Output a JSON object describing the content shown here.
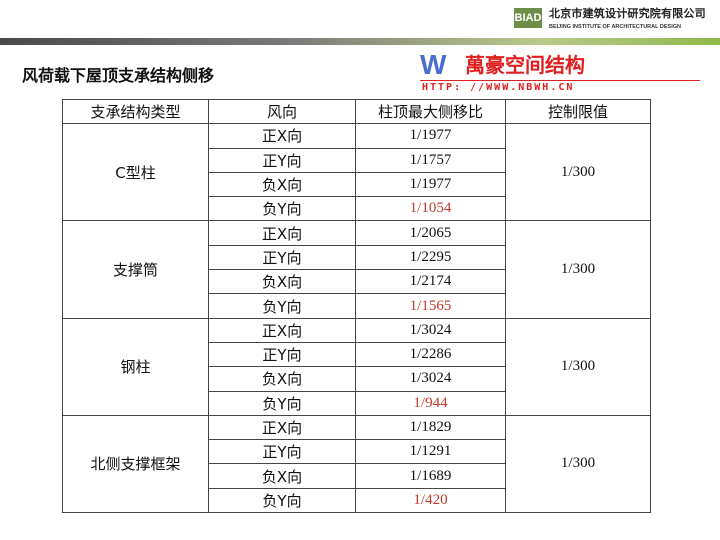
{
  "header": {
    "logo_text": "BIAD",
    "org_cn": "北京市建筑设计研究院有限公司",
    "org_en": "BEIJING INSTITUTE OF ARCHITECTURAL DESIGN"
  },
  "title": "风荷载下屋顶支承结构侧移",
  "table": {
    "headers": [
      "支承结构类型",
      "风向",
      "柱顶最大侧移比",
      "控制限值"
    ],
    "groups": [
      {
        "type": "C型柱",
        "limit": "1/300",
        "rows": [
          [
            "正X向",
            "1/1977"
          ],
          [
            "正Y向",
            "1/1757"
          ],
          [
            "负X向",
            "1/1977"
          ],
          [
            "负Y向",
            "1/1054"
          ]
        ]
      },
      {
        "type": "支撑筒",
        "limit": "1/300",
        "rows": [
          [
            "正X向",
            "1/2065"
          ],
          [
            "正Y向",
            "1/2295"
          ],
          [
            "负X向",
            "1/2174"
          ],
          [
            "负Y向",
            "1/1565"
          ]
        ]
      },
      {
        "type": "钢柱",
        "limit": "1/300",
        "rows": [
          [
            "正X向",
            "1/3024"
          ],
          [
            "正Y向",
            "1/2286"
          ],
          [
            "负X向",
            "1/3024"
          ],
          [
            "负Y向",
            "1/944"
          ]
        ]
      },
      {
        "type": "北侧支撑框架",
        "limit": "1/300",
        "rows": [
          [
            "正X向",
            "1/1829"
          ],
          [
            "正Y向",
            "1/1291"
          ],
          [
            "负X向",
            "1/1689"
          ],
          [
            "负Y向",
            "1/420"
          ]
        ]
      }
    ]
  },
  "watermark": {
    "text": "萬豪空间结构",
    "url": "HTTP: //WWW.NBWH.CN"
  },
  "colors": {
    "highlight": "#c0392b",
    "brand": "#6f8e4a"
  }
}
